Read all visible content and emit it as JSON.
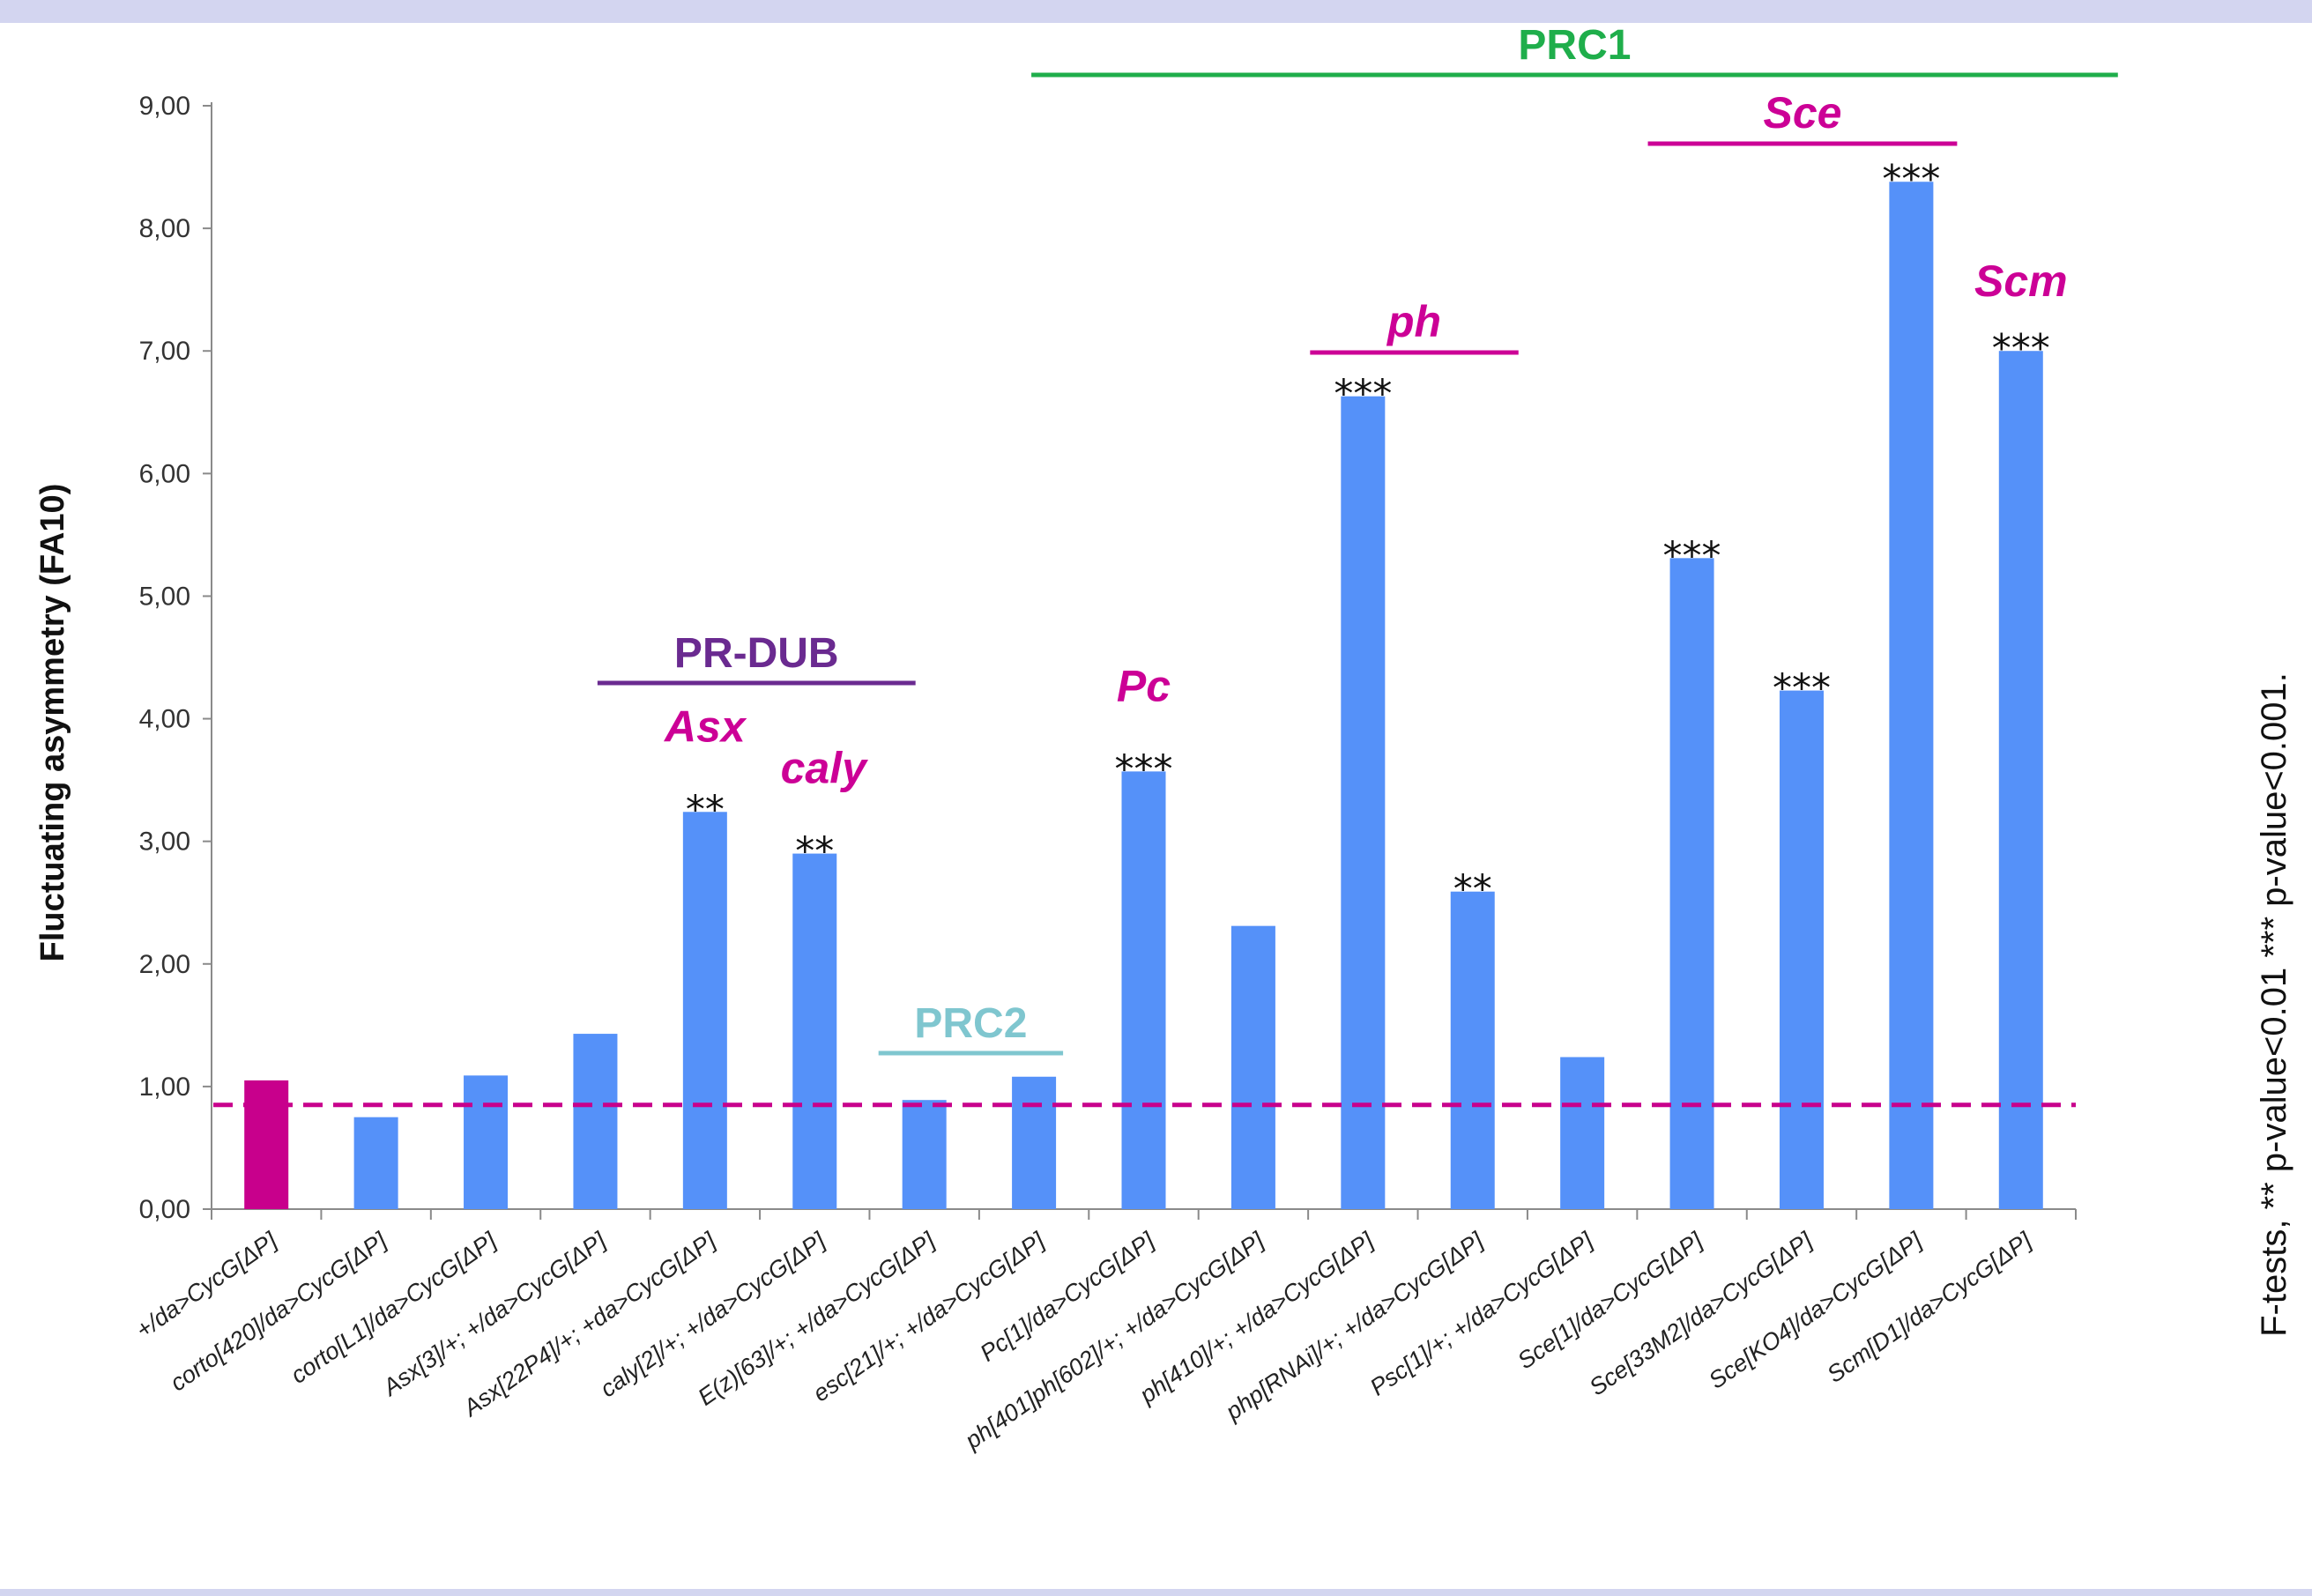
{
  "chart_data": {
    "type": "bar",
    "title": "",
    "xlabel": "",
    "ylabel": "Fluctuating asymmetry (FA10)",
    "ylim": [
      0,
      9
    ],
    "yticks": [
      "0,00",
      "1,00",
      "2,00",
      "3,00",
      "4,00",
      "5,00",
      "6,00",
      "7,00",
      "8,00",
      "9,00"
    ],
    "categories": [
      "+/da>CycG[ΔP]",
      "corto[420]/da>CycG[ΔP]",
      "corto[L1]/da>CycG[ΔP]",
      "Asx[3]/+; +/da>CycG[ΔP]",
      "Asx[22P4]/+; +da>CycG[ΔP]",
      "caly[2]/+; +/da>CycG[ΔP]",
      "E(z)[63]/+; +/da>CycG[ΔP]",
      "esc[21]/+; +/da>CycG[ΔP]",
      "Pc[1]/da>CycG[ΔP]",
      "ph[401]ph[602]/+; +/da>CycG[ΔP]",
      "ph[410]/+; +/da>CycG[ΔP]",
      "php[RNAi]/+; +/da>CycG[ΔP]",
      "Psc[1]/+; +/da>CycG[ΔP]",
      "Sce[1]/da>CycG[ΔP]",
      "Sce[33M2]/da>CycG[ΔP]",
      "Sce[KO4]/da>CycG[ΔP]",
      "Scm[D1]/da>CycG[ΔP]"
    ],
    "values": [
      1.05,
      0.75,
      1.09,
      1.43,
      3.24,
      2.9,
      0.89,
      1.08,
      3.57,
      2.31,
      6.63,
      2.59,
      1.24,
      5.31,
      4.23,
      8.38,
      7.0
    ],
    "bar_colors": [
      "#c8008c",
      "#5591f9",
      "#5591f9",
      "#5591f9",
      "#5591f9",
      "#5591f9",
      "#5591f9",
      "#5591f9",
      "#5591f9",
      "#5591f9",
      "#5591f9",
      "#5591f9",
      "#5591f9",
      "#5591f9",
      "#5591f9",
      "#5591f9",
      "#5591f9"
    ],
    "significance": [
      "",
      "",
      "",
      "",
      "**",
      "**",
      "",
      "",
      "***",
      "",
      "***",
      "**",
      "",
      "***",
      "***",
      "***",
      "***"
    ],
    "reference_line": {
      "value": 0.85,
      "style": "dashed",
      "color": "#c8008c"
    },
    "groups": [
      {
        "label": "PRC1",
        "color": "#1fae4b",
        "from": 7,
        "to": 16
      },
      {
        "label": "Sce",
        "color": "#cc0096",
        "from": 13,
        "to": 15
      },
      {
        "label": "ph",
        "color": "#cc0096",
        "from": 10,
        "to": 11
      },
      {
        "label": "PR-DUB",
        "color": "#6a2a90",
        "from": 4,
        "to": 6
      },
      {
        "label": "PRC2",
        "color": "#7fc6cf",
        "from": 6,
        "to": 7
      }
    ],
    "gene_labels": [
      {
        "label": "Asx",
        "bar": 4,
        "color": "#cc0096"
      },
      {
        "label": "caly",
        "bar": 5,
        "color": "#cc0096"
      },
      {
        "label": "Pc",
        "bar": 8,
        "color": "#cc0096"
      },
      {
        "label": "Scm",
        "bar": 16,
        "color": "#cc0096"
      }
    ],
    "grid": false,
    "legend": "none"
  },
  "footnote": "F-tests, ** p-value<0.01 *** p-value<0.001."
}
